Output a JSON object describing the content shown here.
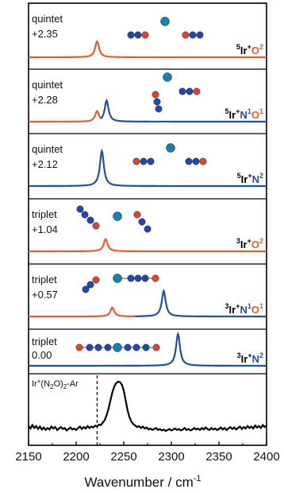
{
  "chart_data": {
    "type": "line",
    "xlabel": "Wavenumber / cm",
    "xlabel_sup": "-1",
    "xlim": [
      2150,
      2400
    ],
    "x_ticks": [
      2150,
      2200,
      2250,
      2300,
      2350,
      2400
    ],
    "x_tick_labels": [
      "2150",
      "2200",
      "2250",
      "2300",
      "2350",
      "2400"
    ],
    "reference_line_x": 2222,
    "colors": {
      "orange": "#f05a28",
      "blue": "#1f4fa8",
      "black": "#000000"
    },
    "panels": [
      {
        "spin": "quintet",
        "energy": "+2.35",
        "label": [
          {
            "t": "5",
            "c": "black",
            "sup": true
          },
          {
            "t": "Ir",
            "c": "black"
          },
          {
            "t": "+",
            "c": "black",
            "sup": true
          },
          {
            "t": "O",
            "c": "orange"
          },
          {
            "t": "2",
            "c": "orange",
            "sup": true
          }
        ],
        "segments": [
          {
            "color": "orange",
            "x_start": 2150,
            "x_end": 2400,
            "peaks": [
              [
                2222,
                1.0
              ]
            ]
          }
        ],
        "molecule_icon": "ion-between-two-n2o-ligands-o-bound"
      },
      {
        "spin": "quintet",
        "energy": "+2.28",
        "label": [
          {
            "t": "5",
            "c": "black",
            "sup": true
          },
          {
            "t": "Ir",
            "c": "black"
          },
          {
            "t": "+",
            "c": "black",
            "sup": true
          },
          {
            "t": "N",
            "c": "blue"
          },
          {
            "t": "1",
            "c": "blue",
            "sup": true
          },
          {
            "t": "O",
            "c": "orange"
          },
          {
            "t": "1",
            "c": "orange",
            "sup": true
          }
        ],
        "segments": [
          {
            "color": "orange",
            "x_start": 2150,
            "x_end": 2226,
            "peaks": [
              [
                2222,
                0.35
              ]
            ]
          },
          {
            "color": "blue",
            "x_start": 2226,
            "x_end": 2400,
            "peaks": [
              [
                2232,
                0.7
              ]
            ]
          }
        ],
        "molecule_icon": "ion-with-o-bound-and-n-bound-n2o"
      },
      {
        "spin": "quintet",
        "energy": "+2.12",
        "label": [
          {
            "t": "5",
            "c": "black",
            "sup": true
          },
          {
            "t": "Ir",
            "c": "black"
          },
          {
            "t": "+",
            "c": "black",
            "sup": true
          },
          {
            "t": "N",
            "c": "blue"
          },
          {
            "t": "2",
            "c": "blue",
            "sup": true
          }
        ],
        "segments": [
          {
            "color": "blue",
            "x_start": 2150,
            "x_end": 2400,
            "peaks": [
              [
                2227,
                1.0
              ]
            ]
          }
        ],
        "molecule_icon": "ion-between-two-n2o-ligands-n-bound"
      },
      {
        "spin": "triplet",
        "energy": "+1.04",
        "label": [
          {
            "t": "3",
            "c": "black",
            "sup": true
          },
          {
            "t": "Ir",
            "c": "black"
          },
          {
            "t": "+",
            "c": "black",
            "sup": true
          },
          {
            "t": "O",
            "c": "orange"
          },
          {
            "t": "2",
            "c": "orange",
            "sup": true
          }
        ],
        "segments": [
          {
            "color": "orange",
            "x_start": 2150,
            "x_end": 2400,
            "peaks": [
              [
                2231,
                0.38
              ]
            ]
          }
        ],
        "molecule_icon": "ion-with-two-bent-n2o-o-bound"
      },
      {
        "spin": "triplet",
        "energy": "+0.57",
        "label": [
          {
            "t": "3",
            "c": "black",
            "sup": true
          },
          {
            "t": "Ir",
            "c": "black"
          },
          {
            "t": "+",
            "c": "black",
            "sup": true
          },
          {
            "t": "N",
            "c": "blue"
          },
          {
            "t": "1",
            "c": "blue",
            "sup": true
          },
          {
            "t": "O",
            "c": "orange"
          },
          {
            "t": "1",
            "c": "orange",
            "sup": true
          }
        ],
        "segments": [
          {
            "color": "orange",
            "x_start": 2150,
            "x_end": 2262,
            "peaks": [
              [
                2238,
                0.28
              ]
            ]
          },
          {
            "color": "blue",
            "x_start": 2262,
            "x_end": 2400,
            "peaks": [
              [
                2292,
                0.8
              ]
            ]
          }
        ],
        "molecule_icon": "ion-with-bent-n2o-and-linear-n2o"
      },
      {
        "spin": "triplet",
        "energy": "0.00",
        "label": [
          {
            "t": "3",
            "c": "black",
            "sup": true
          },
          {
            "t": "Ir",
            "c": "black"
          },
          {
            "t": "+",
            "c": "black",
            "sup": true
          },
          {
            "t": "N",
            "c": "blue"
          },
          {
            "t": "2",
            "c": "blue",
            "sup": true
          }
        ],
        "segments": [
          {
            "color": "blue",
            "x_start": 2150,
            "x_end": 2400,
            "peaks": [
              [
                2307,
                1.0
              ]
            ]
          }
        ],
        "molecule_icon": "linear-n2o-ion-n2o-chain"
      },
      {
        "experimental": true,
        "caption": "Ir+(N2O)2-Ar",
        "caption_parts": [
          {
            "t": "Ir",
            "sup": false
          },
          {
            "t": "+",
            "sup": true
          },
          {
            "t": "(N",
            "sup": false
          },
          {
            "t": "2",
            "sub": true
          },
          {
            "t": "O)",
            "sup": false
          },
          {
            "t": "2",
            "sub": true
          },
          {
            "t": "-Ar",
            "sup": false
          }
        ],
        "peak_x": 2245,
        "series": [
          [
            2150,
            0.1
          ],
          [
            2152,
            0.05
          ],
          [
            2154,
            0.12
          ],
          [
            2156,
            0.06
          ],
          [
            2158,
            0.1
          ],
          [
            2160,
            0.04
          ],
          [
            2162,
            0.09
          ],
          [
            2164,
            0.03
          ],
          [
            2166,
            0.07
          ],
          [
            2168,
            0.02
          ],
          [
            2170,
            0.06
          ],
          [
            2172,
            0.03
          ],
          [
            2174,
            0.09
          ],
          [
            2176,
            0.05
          ],
          [
            2178,
            0.08
          ],
          [
            2180,
            0.02
          ],
          [
            2182,
            0.05
          ],
          [
            2184,
            0.08
          ],
          [
            2186,
            0.04
          ],
          [
            2188,
            0.06
          ],
          [
            2190,
            0.01
          ],
          [
            2192,
            0.04
          ],
          [
            2194,
            0.07
          ],
          [
            2196,
            0.03
          ],
          [
            2198,
            0.05
          ],
          [
            2200,
            0.02
          ],
          [
            2202,
            0.06
          ],
          [
            2204,
            0.09
          ],
          [
            2206,
            0.04
          ],
          [
            2208,
            0.08
          ],
          [
            2210,
            0.05
          ],
          [
            2212,
            0.1
          ],
          [
            2214,
            0.06
          ],
          [
            2216,
            0.09
          ],
          [
            2218,
            0.07
          ],
          [
            2220,
            0.11
          ],
          [
            2222,
            0.09
          ],
          [
            2224,
            0.13
          ],
          [
            2226,
            0.12
          ],
          [
            2228,
            0.17
          ],
          [
            2230,
            0.22
          ],
          [
            2232,
            0.32
          ],
          [
            2234,
            0.45
          ],
          [
            2236,
            0.62
          ],
          [
            2238,
            0.78
          ],
          [
            2240,
            0.9
          ],
          [
            2242,
            0.97
          ],
          [
            2244,
            1.0
          ],
          [
            2246,
            0.99
          ],
          [
            2248,
            0.94
          ],
          [
            2250,
            0.82
          ],
          [
            2252,
            0.62
          ],
          [
            2254,
            0.42
          ],
          [
            2256,
            0.28
          ],
          [
            2258,
            0.19
          ],
          [
            2260,
            0.14
          ],
          [
            2262,
            0.11
          ],
          [
            2264,
            0.08
          ],
          [
            2266,
            0.1
          ],
          [
            2268,
            0.06
          ],
          [
            2270,
            0.09
          ],
          [
            2272,
            0.05
          ],
          [
            2274,
            0.07
          ],
          [
            2276,
            0.03
          ],
          [
            2278,
            0.05
          ],
          [
            2280,
            0.02
          ],
          [
            2282,
            0.04
          ],
          [
            2284,
            0.06
          ],
          [
            2286,
            0.02
          ],
          [
            2288,
            0.04
          ],
          [
            2290,
            0.01
          ],
          [
            2292,
            0.03
          ],
          [
            2294,
            0.0
          ],
          [
            2296,
            0.02
          ],
          [
            2298,
            0.04
          ],
          [
            2300,
            0.01
          ],
          [
            2302,
            0.03
          ],
          [
            2304,
            0.05
          ],
          [
            2306,
            0.02
          ],
          [
            2308,
            0.04
          ],
          [
            2310,
            0.01
          ],
          [
            2312,
            0.03
          ],
          [
            2314,
            0.06
          ],
          [
            2316,
            0.02
          ],
          [
            2318,
            0.04
          ],
          [
            2320,
            0.01
          ],
          [
            2322,
            0.03
          ],
          [
            2324,
            0.06
          ],
          [
            2326,
            0.03
          ],
          [
            2328,
            0.05
          ],
          [
            2330,
            0.02
          ],
          [
            2332,
            0.06
          ],
          [
            2334,
            0.03
          ],
          [
            2336,
            0.07
          ],
          [
            2338,
            0.04
          ],
          [
            2340,
            0.02
          ],
          [
            2342,
            0.06
          ],
          [
            2344,
            0.03
          ],
          [
            2346,
            0.05
          ],
          [
            2348,
            0.02
          ],
          [
            2350,
            0.04
          ],
          [
            2352,
            0.07
          ],
          [
            2354,
            0.03
          ],
          [
            2356,
            0.06
          ],
          [
            2358,
            0.02
          ],
          [
            2360,
            0.05
          ],
          [
            2362,
            0.08
          ],
          [
            2364,
            0.04
          ],
          [
            2366,
            0.07
          ],
          [
            2368,
            0.03
          ],
          [
            2370,
            0.06
          ],
          [
            2372,
            0.09
          ],
          [
            2374,
            0.04
          ],
          [
            2376,
            0.08
          ],
          [
            2378,
            0.05
          ],
          [
            2380,
            0.1
          ],
          [
            2382,
            0.06
          ],
          [
            2384,
            0.09
          ],
          [
            2386,
            0.05
          ],
          [
            2388,
            0.11
          ],
          [
            2390,
            0.07
          ],
          [
            2392,
            0.1
          ],
          [
            2394,
            0.06
          ],
          [
            2396,
            0.12
          ],
          [
            2398,
            0.08
          ],
          [
            2400,
            0.11
          ]
        ]
      }
    ]
  }
}
